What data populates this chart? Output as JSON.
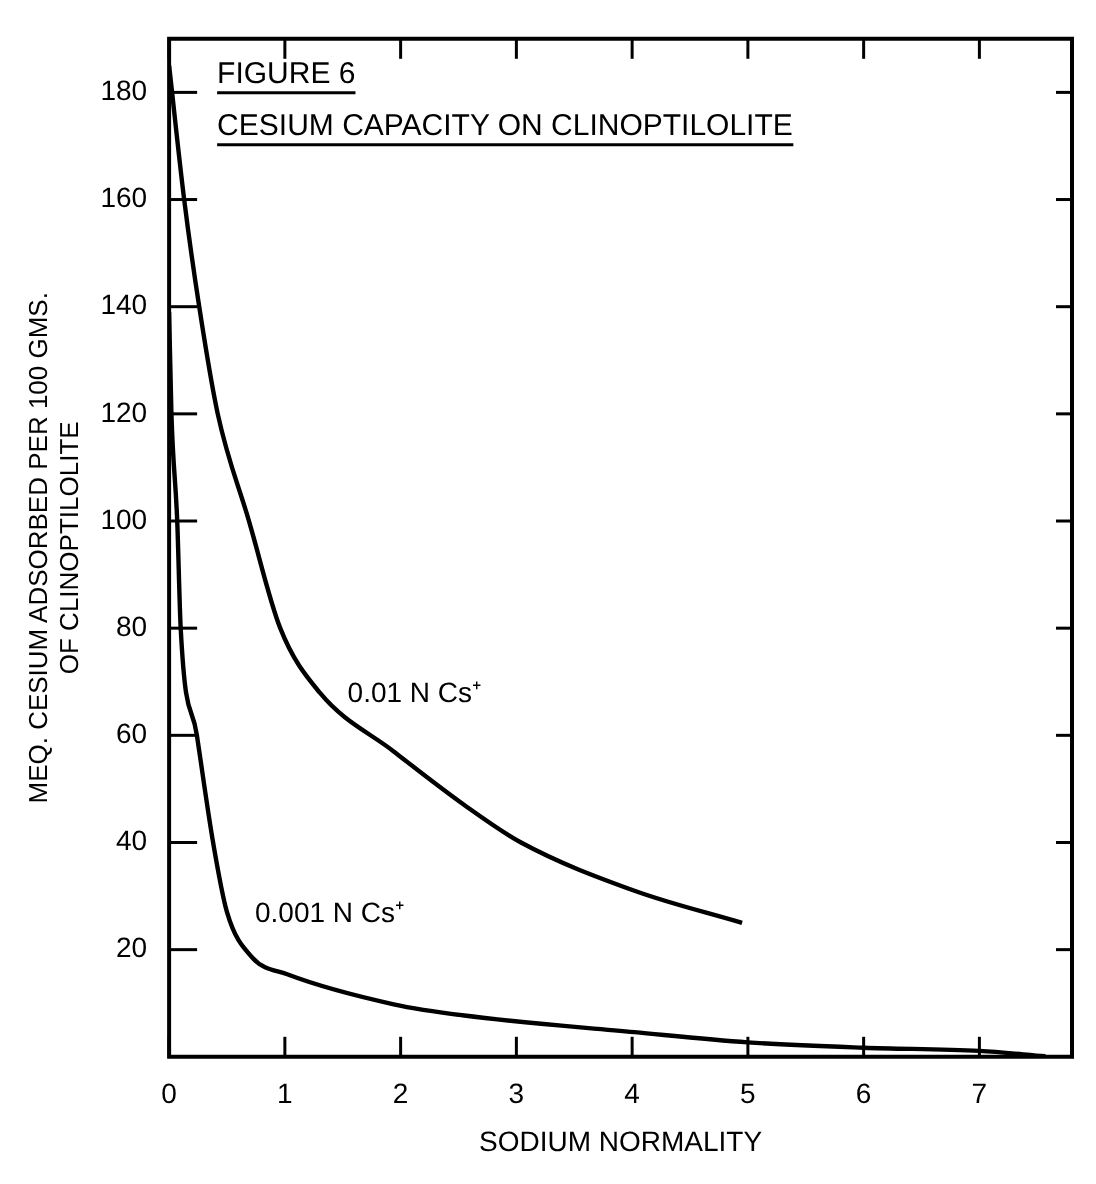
{
  "chart_data": {
    "type": "line",
    "title": "FIGURE 6",
    "subtitle": "CESIUM CAPACITY ON CLINOPTILOLITE",
    "xlabel": "SODIUM NORMALITY",
    "ylabel": "MEQ. CESIUM ADSORBED PER 100 GMS.\nOF CLINOPTILOLITE",
    "series": [
      {
        "name": "0.01 N Cs⁺",
        "color": "#000000",
        "x": [
          0,
          0.13,
          0.26,
          0.42,
          0.69,
          0.96,
          1.3,
          1.94,
          2.55,
          3.04,
          4.02,
          4.95
        ],
        "values": [
          185,
          160,
          140,
          120,
          100,
          80,
          68,
          57,
          47,
          40,
          31,
          25
        ]
      },
      {
        "name": "0.001 N Cs⁺",
        "color": "#000000",
        "x": [
          0,
          0.02,
          0.07,
          0.1,
          0.24,
          0.38,
          0.5,
          0.72,
          1.02,
          1.94,
          2.55,
          4.02,
          5,
          6,
          7,
          7.57
        ],
        "values": [
          139,
          120,
          100,
          80,
          60,
          40,
          27,
          18.5,
          15.4,
          9.8,
          7.7,
          4.6,
          2.7,
          1.7,
          1.1,
          0.1
        ]
      }
    ],
    "xlim": [
      0,
      7.8
    ],
    "xticks": [
      0,
      1,
      2,
      3,
      4,
      5,
      6,
      7
    ],
    "ylim": [
      0,
      190
    ],
    "yticks": [
      20,
      40,
      60,
      80,
      100,
      120,
      140,
      160,
      180
    ],
    "grid": false,
    "legend": false,
    "marker": "none",
    "line_style": "solid"
  }
}
